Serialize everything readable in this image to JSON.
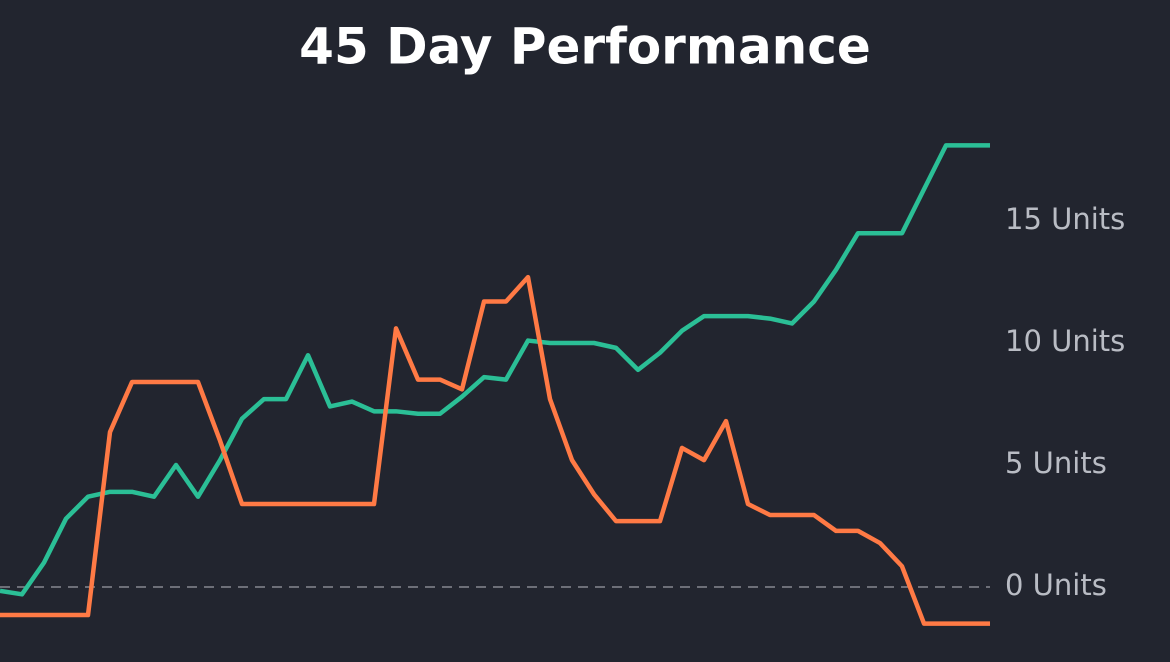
{
  "chart_data": {
    "type": "line",
    "title": "45 Day Performance",
    "categories": [
      null,
      null,
      null,
      null,
      null,
      null,
      null,
      null,
      null,
      null,
      null,
      null,
      null,
      null,
      null,
      null,
      null,
      null,
      null,
      null,
      null,
      null,
      null,
      null,
      null,
      null,
      null,
      null,
      null,
      null,
      null,
      null,
      null,
      null,
      null,
      null,
      null,
      null,
      null,
      null,
      null,
      null,
      null,
      null,
      null,
      null
    ],
    "series": [
      {
        "color": "#2bbf96",
        "values": [
          -0.16,
          -0.3,
          1.0,
          2.8,
          3.7,
          3.9,
          3.9,
          3.7,
          5.0,
          3.7,
          5.2,
          6.9,
          7.7,
          7.7,
          9.5,
          7.4,
          7.6,
          7.2,
          7.2,
          7.1,
          7.1,
          7.8,
          8.6,
          8.5,
          10.1,
          10.0,
          10.0,
          10.0,
          9.8,
          8.9,
          9.6,
          10.5,
          11.1,
          11.1,
          11.1,
          11.0,
          10.8,
          11.7,
          13.0,
          14.5,
          14.5,
          14.5,
          16.3,
          18.1,
          18.1,
          18.1
        ]
      },
      {
        "color": "#ff7a45",
        "values": [
          -1.15,
          -1.15,
          -1.15,
          -1.15,
          -1.15,
          6.35,
          8.4,
          8.4,
          8.4,
          8.4,
          6.0,
          3.4,
          3.4,
          3.4,
          3.4,
          3.4,
          3.4,
          3.4,
          10.6,
          8.5,
          8.5,
          8.1,
          11.7,
          11.7,
          12.7,
          7.7,
          5.2,
          3.8,
          2.7,
          2.7,
          2.7,
          5.7,
          5.2,
          6.8,
          3.4,
          2.95,
          2.95,
          2.95,
          2.3,
          2.3,
          1.8,
          0.85,
          -1.5,
          -1.5,
          -1.5,
          -1.5
        ]
      }
    ],
    "ylim": [
      -3,
      20
    ],
    "yticks": [
      {
        "value": 0,
        "label": "0 Units"
      },
      {
        "value": 5,
        "label": "5 Units"
      },
      {
        "value": 10,
        "label": "10 Units"
      },
      {
        "value": 15,
        "label": "15 Units"
      }
    ],
    "zero_line": true
  }
}
